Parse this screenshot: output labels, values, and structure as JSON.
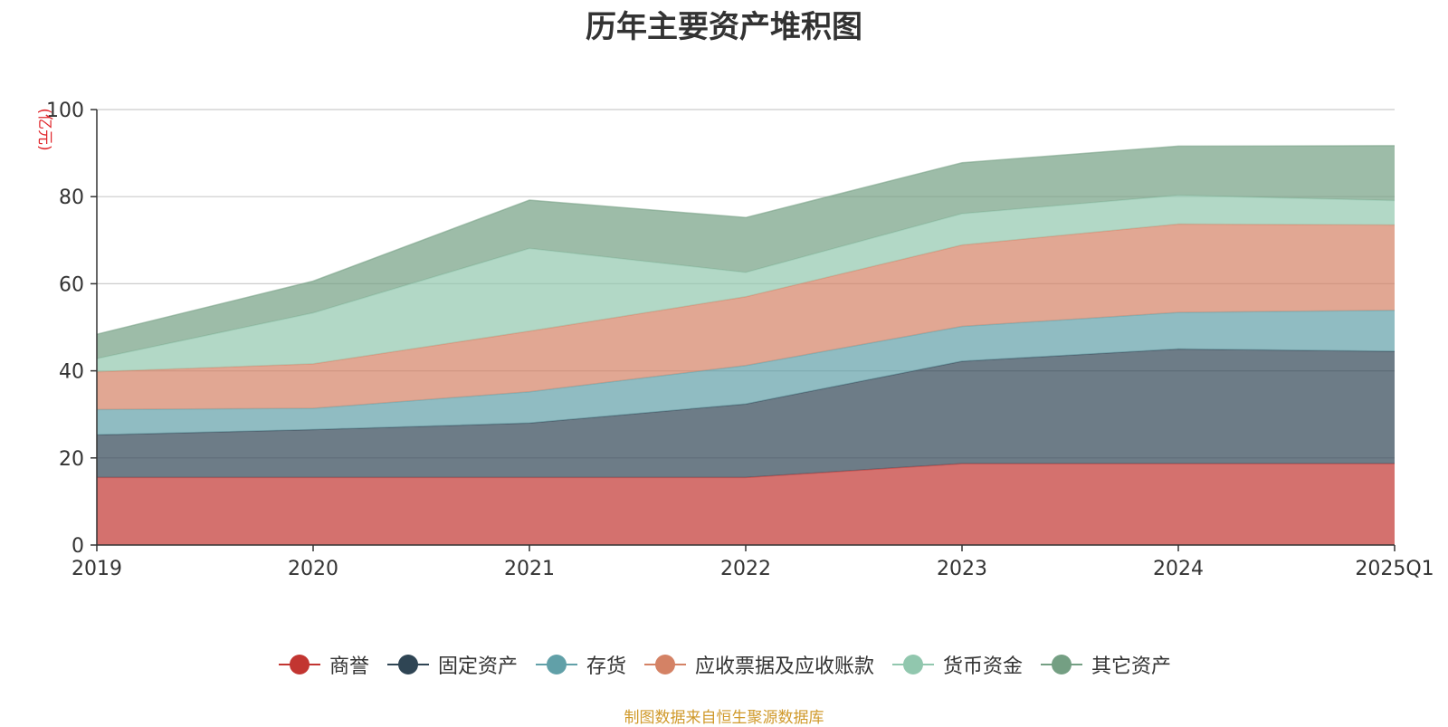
{
  "chart_data": {
    "type": "area",
    "stacked": true,
    "title": "历年主要资产堆积图",
    "ylabel": "(亿元)",
    "xlabel": "",
    "categories": [
      "2019",
      "2020",
      "2021",
      "2022",
      "2023",
      "2024",
      "2025Q1"
    ],
    "ylim": [
      0,
      100
    ],
    "yticks": [
      0,
      20,
      40,
      60,
      80,
      100
    ],
    "grid": true,
    "legend_position": "bottom",
    "series": [
      {
        "name": "商誉",
        "color": "#c23531",
        "values": [
          15.5,
          15.5,
          15.5,
          15.5,
          18.7,
          18.7,
          18.7
        ]
      },
      {
        "name": "固定资产",
        "color": "#2f4554",
        "values": [
          9.8,
          11.0,
          12.5,
          16.9,
          23.5,
          26.3,
          25.8
        ]
      },
      {
        "name": "存货",
        "color": "#61a0a8",
        "values": [
          5.8,
          4.9,
          7.2,
          8.8,
          8.0,
          8.4,
          9.4
        ]
      },
      {
        "name": "应收票据及应收账款",
        "color": "#d48265",
        "values": [
          8.7,
          10.2,
          13.9,
          15.8,
          18.7,
          20.3,
          19.6
        ]
      },
      {
        "name": "货币资金",
        "color": "#91c7ae",
        "values": [
          3.0,
          11.7,
          19.0,
          5.6,
          7.2,
          6.6,
          5.6
        ]
      },
      {
        "name": "其它资产",
        "color": "#749f83",
        "values": [
          5.6,
          7.3,
          11.1,
          12.6,
          11.7,
          11.3,
          12.6
        ]
      }
    ]
  },
  "footer": {
    "source": "制图数据来自恒生聚源数据库"
  }
}
